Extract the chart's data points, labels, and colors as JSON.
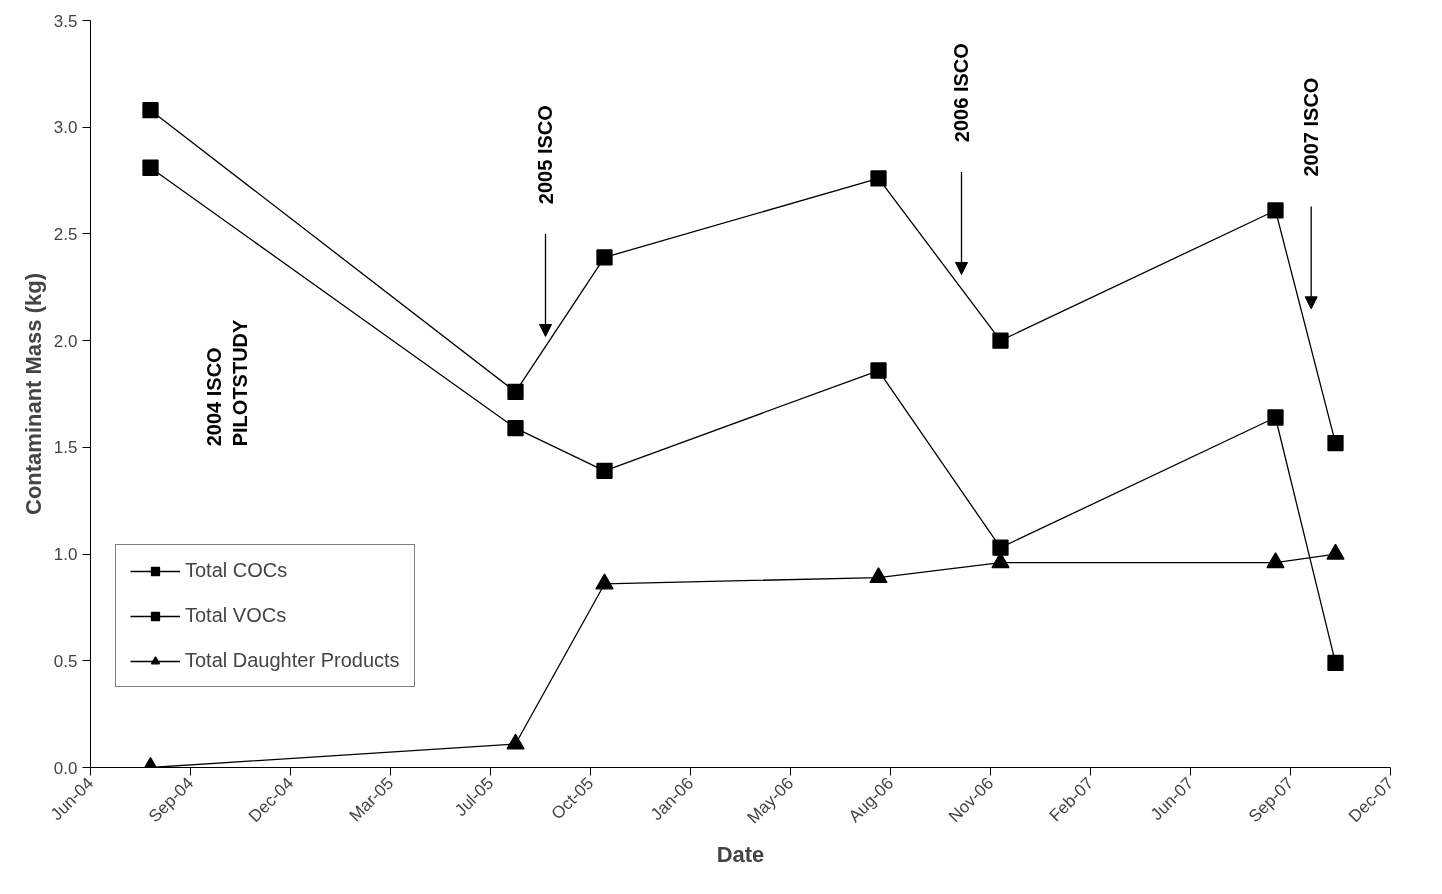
{
  "chart_data": {
    "type": "line",
    "xlabel": "Date",
    "ylabel": "Contaminant Mass (kg)",
    "x": [
      "2004-07-31",
      "2005-07-31",
      "2005-10-28",
      "2006-07-29",
      "2006-11-28",
      "2007-08-30",
      "2007-10-29"
    ],
    "series": [
      {
        "name": "Total COCs",
        "color": "#000000",
        "marker": "square",
        "values": [
          2.81,
          1.59,
          1.39,
          1.86,
          1.03,
          1.64,
          0.49
        ]
      },
      {
        "name": "Total VOCs",
        "color": "#000000",
        "marker": "square",
        "values": [
          3.08,
          1.76,
          2.39,
          2.76,
          2.0,
          2.61,
          1.52
        ]
      },
      {
        "name": "Total Daughter Products",
        "color": "#000000",
        "marker": "triangle",
        "values": [
          0.0,
          0.11,
          0.86,
          0.89,
          0.96,
          0.96,
          1.0
        ]
      }
    ],
    "xlim": [
      "2004-06-01",
      "2007-12-23"
    ],
    "xticks": [
      {
        "value": "2004-06-01",
        "label": "Jun-04"
      },
      {
        "value": "2004-09-09",
        "label": "Sep-04"
      },
      {
        "value": "2004-12-18",
        "label": "Dec-04"
      },
      {
        "value": "2005-03-28",
        "label": "Mar-05"
      },
      {
        "value": "2005-07-06",
        "label": "Jul-05"
      },
      {
        "value": "2005-10-14",
        "label": "Oct-05"
      },
      {
        "value": "2006-01-22",
        "label": "Jan-06"
      },
      {
        "value": "2006-05-02",
        "label": "May-06"
      },
      {
        "value": "2006-08-10",
        "label": "Aug-06"
      },
      {
        "value": "2006-11-18",
        "label": "Nov-06"
      },
      {
        "value": "2007-02-26",
        "label": "Feb-07"
      },
      {
        "value": "2007-06-06",
        "label": "Jun-07"
      },
      {
        "value": "2007-09-14",
        "label": "Sep-07"
      },
      {
        "value": "2007-12-23",
        "label": "Dec-07"
      }
    ],
    "ylim": [
      0,
      3.5
    ],
    "yticks": [
      {
        "value": 0,
        "label": "0.0"
      },
      {
        "value": 0.5,
        "label": "0.5"
      },
      {
        "value": 1,
        "label": "1.0"
      },
      {
        "value": 1.5,
        "label": "1.5"
      },
      {
        "value": 2,
        "label": "2.0"
      },
      {
        "value": 2.5,
        "label": "2.5"
      },
      {
        "value": 3,
        "label": "3.0"
      },
      {
        "value": 3.5,
        "label": "3.5"
      }
    ],
    "grid": false,
    "legend": "left",
    "annotations": [
      "2004 ISCO\nPILOTSTUDY",
      "2005 ISCO",
      "2006 ISCO",
      "2007 ISCO"
    ]
  }
}
